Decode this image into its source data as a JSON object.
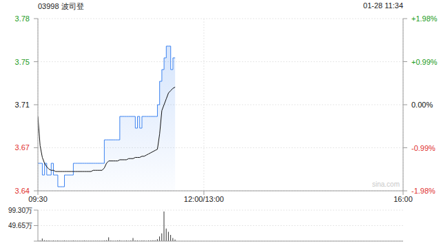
{
  "chart_data": [
    {
      "type": "line",
      "title": "03998 波司登",
      "subtitle": "01-28 11:34",
      "annotations": [
        "sina.com"
      ],
      "x": [
        0,
        2,
        4,
        6,
        8,
        10,
        12,
        14,
        16,
        18,
        20,
        22,
        24,
        26,
        28,
        30,
        32,
        34,
        36,
        38,
        40,
        42,
        44,
        46,
        48,
        50,
        52,
        54,
        56,
        58,
        60,
        62,
        64,
        66,
        68,
        70,
        72,
        74,
        76,
        78,
        80,
        82,
        84,
        86,
        88,
        90,
        92,
        94,
        96,
        98,
        100,
        102,
        104,
        106,
        108,
        110,
        112,
        114,
        116,
        118,
        120,
        122,
        124
      ],
      "xlim": [
        0,
        330
      ],
      "xticks": [
        {
          "value": 0,
          "label": "09:30"
        },
        {
          "value": 150,
          "label": "12:00/13:00"
        },
        {
          "value": 330,
          "label": "16:00"
        }
      ],
      "ylim": [
        3.6365,
        3.7835
      ],
      "yticks": [
        {
          "value": 3.6365,
          "label": "3.64"
        },
        {
          "value": 3.6733,
          "label": "3.67"
        },
        {
          "value": 3.71,
          "label": "3.71"
        },
        {
          "value": 3.7467,
          "label": "3.75"
        },
        {
          "value": 3.7835,
          "label": "3.78"
        }
      ],
      "y2lim": [
        -1.98,
        1.98
      ],
      "y2ticks": [
        {
          "value": 1.98,
          "label": "+1.98%"
        },
        {
          "value": 0.99,
          "label": "+0.99%"
        },
        {
          "value": 0,
          "label": "0.00%"
        },
        {
          "value": -0.99,
          "label": "-0.99%"
        },
        {
          "value": -1.98,
          "label": "-1.98%"
        }
      ],
      "grid": true,
      "series": [
        {
          "type": "area",
          "color": "#3b82f0",
          "values": [
            3.66,
            3.66,
            3.65,
            3.66,
            3.65,
            3.65,
            3.66,
            3.65,
            3.65,
            3.64,
            3.64,
            3.64,
            3.65,
            3.65,
            3.65,
            3.65,
            3.66,
            3.66,
            3.66,
            3.66,
            3.66,
            3.66,
            3.66,
            3.66,
            3.66,
            3.66,
            3.66,
            3.66,
            3.66,
            3.66,
            3.68,
            3.68,
            3.68,
            3.68,
            3.68,
            3.68,
            3.68,
            3.7,
            3.7,
            3.7,
            3.7,
            3.7,
            3.7,
            3.7,
            3.69,
            3.7,
            3.69,
            3.7,
            3.7,
            3.7,
            3.7,
            3.7,
            3.7,
            3.7,
            3.71,
            3.73,
            3.74,
            3.75,
            3.76,
            3.76,
            3.74,
            3.75,
            3.75
          ]
        },
        {
          "type": "line",
          "color": "#111111",
          "values": [
            3.7,
            3.675,
            3.665,
            3.66,
            3.657,
            3.655,
            3.654,
            3.654,
            3.653,
            3.653,
            3.653,
            3.653,
            3.653,
            3.653,
            3.653,
            3.653,
            3.653,
            3.653,
            3.653,
            3.653,
            3.653,
            3.653,
            3.653,
            3.653,
            3.653,
            3.654,
            3.654,
            3.654,
            3.654,
            3.654,
            3.656,
            3.66,
            3.662,
            3.662,
            3.662,
            3.662,
            3.662,
            3.663,
            3.663,
            3.663,
            3.663,
            3.664,
            3.664,
            3.664,
            3.665,
            3.665,
            3.665,
            3.666,
            3.666,
            3.667,
            3.668,
            3.669,
            3.67,
            3.671,
            3.672,
            3.685,
            3.705,
            3.71,
            3.715,
            3.72,
            3.722,
            3.724,
            3.725
          ]
        }
      ]
    },
    {
      "type": "bar",
      "x": [
        0,
        2,
        4,
        6,
        8,
        10,
        12,
        14,
        16,
        18,
        20,
        22,
        24,
        26,
        28,
        30,
        32,
        34,
        36,
        38,
        40,
        42,
        44,
        46,
        48,
        50,
        52,
        54,
        56,
        58,
        60,
        62,
        64,
        66,
        68,
        70,
        72,
        74,
        76,
        78,
        80,
        82,
        84,
        86,
        88,
        90,
        92,
        94,
        96,
        98,
        100,
        102,
        104,
        106,
        108,
        110,
        112,
        114,
        116,
        118,
        120,
        122,
        124
      ],
      "values": [
        3,
        2,
        8,
        3,
        2,
        2,
        1,
        2,
        1,
        2,
        1,
        1,
        2,
        1,
        1,
        1,
        2,
        1,
        1,
        1,
        1,
        2,
        1,
        1,
        1,
        1,
        1,
        1,
        1,
        1,
        2,
        3,
        12,
        2,
        1,
        1,
        2,
        3,
        1,
        1,
        2,
        1,
        2,
        10,
        2,
        2,
        1,
        2,
        2,
        1,
        2,
        2,
        3,
        3,
        6,
        15,
        25,
        95,
        40,
        30,
        20,
        10,
        5
      ],
      "xlim": [
        0,
        330
      ],
      "ylim": [
        0,
        99.3
      ],
      "yticks": [
        0,
        {
          "value": 49.65,
          "label": "49.65万"
        },
        {
          "value": 99.3,
          "label": "99.30万"
        }
      ],
      "color": "#333333",
      "grid": true,
      "tick_labels": "y"
    }
  ]
}
